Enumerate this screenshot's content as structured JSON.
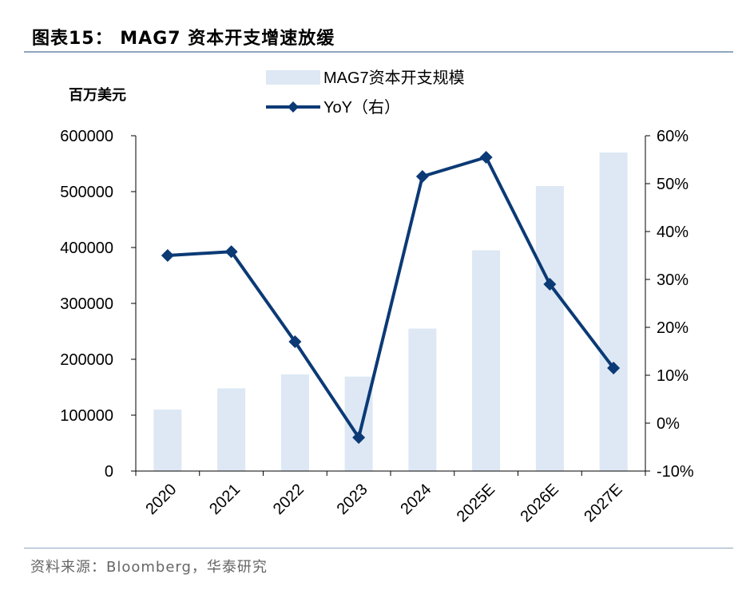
{
  "header": {
    "title": "图表15：  MAG7 资本开支增速放缓"
  },
  "footer": {
    "source": "资料来源：Bloomberg，华泰研究"
  },
  "colors": {
    "bar": "#dde8f4",
    "line": "#0b3a75",
    "axis": "#000000",
    "rule": "#8fa6bf"
  },
  "chart_data": {
    "type": "bar",
    "title": "MAG7 资本开支增速放缓",
    "ylabel": "百万美元",
    "categories": [
      "2020",
      "2021",
      "2022",
      "2023",
      "2024",
      "2025E",
      "2026E",
      "2027E"
    ],
    "series": [
      {
        "name": "MAG7资本开支规模",
        "type": "bar",
        "axis": "left",
        "values": [
          110000,
          148000,
          173000,
          169000,
          255000,
          395000,
          510000,
          570000
        ]
      },
      {
        "name": "YoY（右）",
        "type": "line",
        "axis": "right",
        "marker": "diamond",
        "values": [
          35,
          35.8,
          17,
          -3,
          51.5,
          55.5,
          29,
          11.5
        ]
      }
    ],
    "y_left": {
      "min": 0,
      "max": 600000,
      "ticks": [
        "600000",
        "500000",
        "400000",
        "300000",
        "200000",
        "100000",
        "0"
      ]
    },
    "y_right": {
      "min": -10,
      "max": 60,
      "ticks": [
        "60%",
        "50%",
        "40%",
        "30%",
        "20%",
        "10%",
        "0%",
        "-10%"
      ]
    },
    "legend": {
      "placement": "top-center"
    },
    "grid": false
  }
}
